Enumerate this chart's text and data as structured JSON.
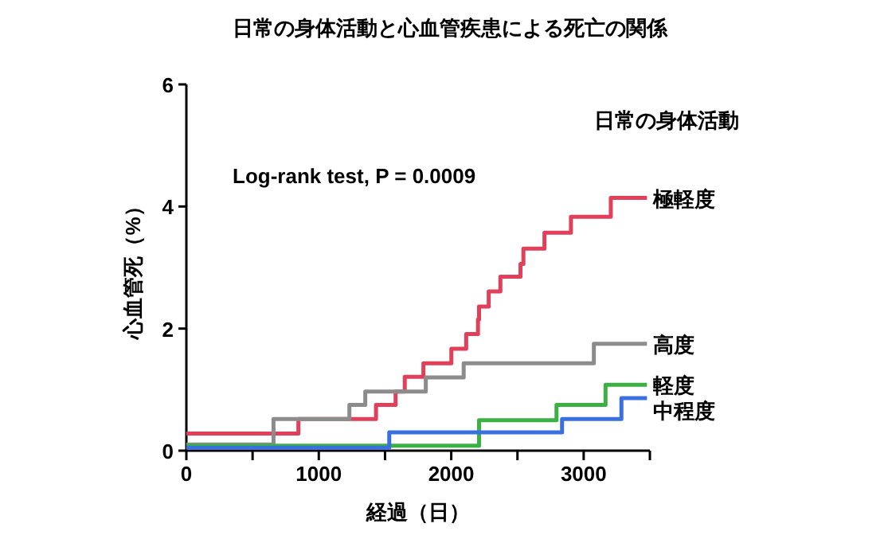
{
  "chart_data": {
    "type": "step",
    "title": "日常の身体活動と心血管疾患による死亡の関係",
    "xlabel": "経過（日）",
    "ylabel": "心血管死（%）",
    "legend_title": "日常の身体活動",
    "annotations": [
      "Log-rank test,  P = 0.0009"
    ],
    "xlim": [
      0,
      3500
    ],
    "xticks": [
      0,
      {
        "value": 500,
        "label": null
      },
      1000,
      {
        "value": 1500,
        "label": null
      },
      2000,
      {
        "value": 2500,
        "label": null
      },
      3000,
      {
        "value": 3500,
        "label": null
      }
    ],
    "ylim": [
      0,
      6
    ],
    "yticks": [
      0,
      2,
      4,
      6
    ],
    "grid": false,
    "line_style": "solid",
    "series": [
      {
        "name": "極軽度",
        "color": "#e0405a",
        "x": [
          0,
          846,
          1432,
          1580,
          1649,
          1790,
          2001,
          2113,
          2202,
          2210,
          2283,
          2371,
          2523,
          2545,
          2704,
          2904,
          3205,
          3478
        ],
        "values": [
          0.28,
          0.52,
          0.75,
          0.97,
          1.21,
          1.43,
          1.67,
          1.91,
          2.15,
          2.36,
          2.61,
          2.85,
          3.06,
          3.31,
          3.57,
          3.83,
          4.14,
          4.14
        ]
      },
      {
        "name": "高度",
        "color": "#8c8c8c",
        "x": [
          0,
          658,
          1231,
          1351,
          1808,
          2094,
          3077,
          3478
        ],
        "values": [
          0.1,
          0.52,
          0.75,
          0.97,
          1.2,
          1.43,
          1.75,
          1.75
        ]
      },
      {
        "name": "軽度",
        "color": "#3cb043",
        "x": [
          0,
          2210,
          2795,
          3165,
          3478
        ],
        "values": [
          0.08,
          0.5,
          0.75,
          1.08,
          1.08
        ]
      },
      {
        "name": "中程度",
        "color": "#3a6fe0",
        "x": [
          0,
          1532,
          2837,
          3285,
          3478
        ],
        "values": [
          0.05,
          0.3,
          0.52,
          0.86,
          0.86
        ]
      }
    ]
  }
}
